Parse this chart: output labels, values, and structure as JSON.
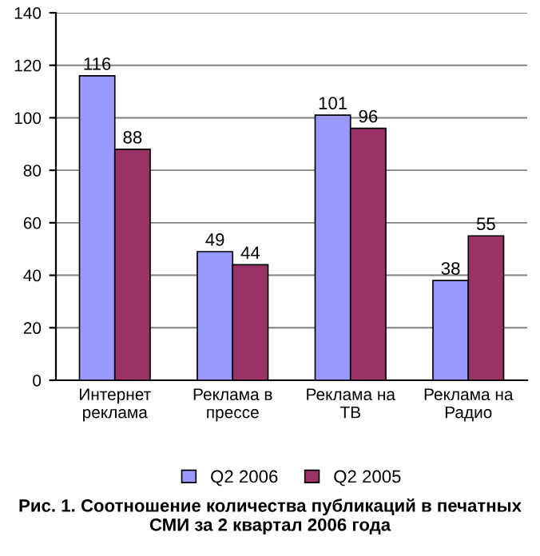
{
  "chart_data": {
    "type": "bar",
    "title": "Рис. 1. Соотношение количества публикаций в печатных СМИ за 2 квартал 2006 года",
    "categories": [
      "Интернет\nреклама",
      "Реклама в\nпрессе",
      "Реклама на\nТВ",
      "Реклама на\nРадио"
    ],
    "series": [
      {
        "name": "Q2 2006",
        "color": "#9999ff",
        "values": [
          116,
          49,
          101,
          38
        ]
      },
      {
        "name": "Q2 2005",
        "color": "#993366",
        "values": [
          88,
          44,
          96,
          55
        ]
      }
    ],
    "ylim": [
      0,
      140
    ],
    "yticks": [
      0,
      20,
      40,
      60,
      80,
      100,
      120,
      140
    ],
    "grid": "y",
    "legend": "bottom",
    "data_labels": true
  }
}
